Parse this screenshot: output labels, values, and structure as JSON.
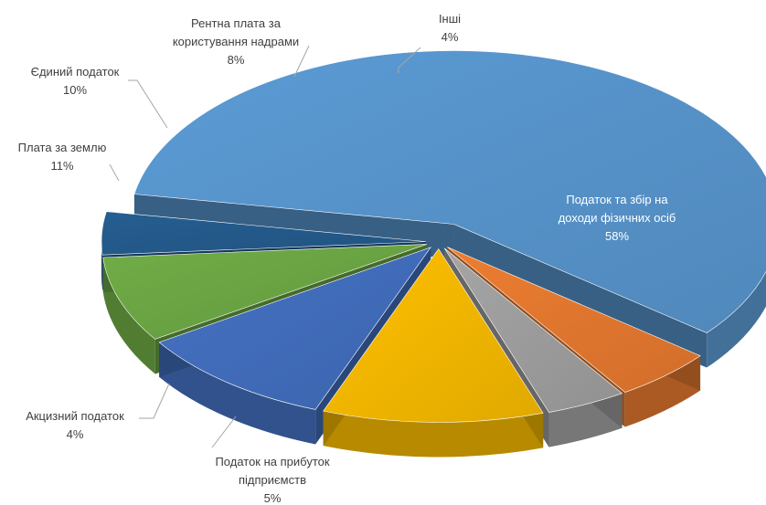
{
  "chart_data": {
    "type": "pie",
    "title": "",
    "style": "3d-exploded",
    "slices": [
      {
        "name": "Податок та збір на доходи фізичних осіб",
        "lines": [
          "Податок та збір на",
          "доходи фізичних осіб"
        ],
        "value": 58,
        "label": "58%",
        "color": "#5b9bd5"
      },
      {
        "name": "Податок на прибуток підприємств",
        "lines": [
          "Податок на прибуток",
          "підприємств"
        ],
        "value": 5,
        "label": "5%",
        "color": "#ed7d31"
      },
      {
        "name": "Акцизний податок",
        "lines": [
          "Акцизний податок"
        ],
        "value": 4,
        "label": "4%",
        "color": "#a5a5a5"
      },
      {
        "name": "Плата за землю",
        "lines": [
          "Плата за землю"
        ],
        "value": 11,
        "label": "11%",
        "color": "#ffc000"
      },
      {
        "name": "Єдиний податок",
        "lines": [
          "Єдиний податок"
        ],
        "value": 10,
        "label": "10%",
        "color": "#4472c4"
      },
      {
        "name": "Рентна плата за користування надрами",
        "lines": [
          "Рентна плата за",
          "користування надрами"
        ],
        "value": 8,
        "label": "8%",
        "color": "#70ad47"
      },
      {
        "name": "Інші",
        "lines": [
          "Інші"
        ],
        "value": 4,
        "label": "4%",
        "color": "#255e91"
      }
    ]
  }
}
